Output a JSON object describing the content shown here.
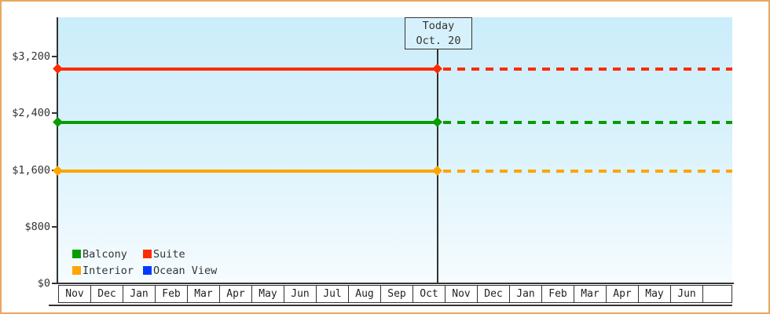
{
  "frame": {
    "border_color": "#e9a75f",
    "background": "#ffffff"
  },
  "chart_data": {
    "type": "line",
    "title": "",
    "xlabel": "",
    "ylabel": "",
    "ylim": [
      0,
      3750
    ],
    "grid": false,
    "legend_position": "bottom-left",
    "y_ticks": [
      {
        "label": "$0",
        "value": 0
      },
      {
        "label": "$800",
        "value": 800
      },
      {
        "label": "$1,600",
        "value": 1600
      },
      {
        "label": "$2,400",
        "value": 2400
      },
      {
        "label": "$3,200",
        "value": 3200
      }
    ],
    "x_months": [
      "Nov",
      "Dec",
      "Jan",
      "Feb",
      "Mar",
      "Apr",
      "May",
      "Jun",
      "Jul",
      "Aug",
      "Sep",
      "Oct",
      "Nov",
      "Dec",
      "Jan",
      "Feb",
      "Mar",
      "Apr",
      "May",
      "Jun",
      ""
    ],
    "today": {
      "line1": "Today",
      "line2": "Oct. 20",
      "month_index": 11
    },
    "series": [
      {
        "name": "Balcony",
        "color": "#089c00",
        "price": 2270,
        "style": "solid-then-dashed"
      },
      {
        "name": "Suite",
        "color": "#ff2a00",
        "price": 3020,
        "style": "solid-then-dashed"
      },
      {
        "name": "Interior",
        "color": "#ffa500",
        "price": 1580,
        "style": "solid-then-dashed"
      },
      {
        "name": "Ocean View",
        "color": "#0639ff",
        "price": null,
        "style": "legend-only"
      }
    ]
  }
}
